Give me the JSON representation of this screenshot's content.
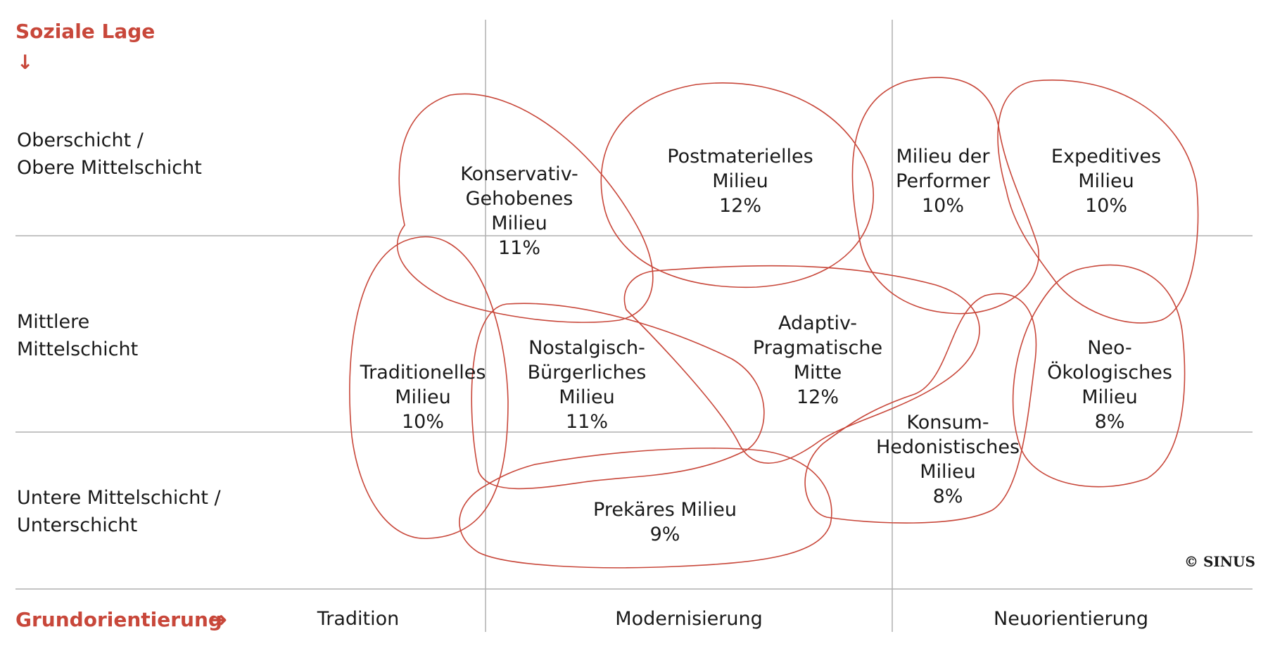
{
  "y_axis": {
    "title": "Soziale Lage",
    "arrow": "↓"
  },
  "x_axis": {
    "title": "Grundorientierung",
    "arrow": "➜"
  },
  "rows": [
    {
      "line1": "Oberschicht /",
      "line2": "Obere Mittelschicht"
    },
    {
      "line1": "Mittlere",
      "line2": "Mittelschicht"
    },
    {
      "line1": "Untere Mittelschicht /",
      "line2": "Unterschicht"
    }
  ],
  "columns": [
    "Tradition",
    "Modernisierung",
    "Neuorientierung"
  ],
  "milieus": [
    {
      "lines": [
        "Konservativ-",
        "Gehobenes",
        "Milieu"
      ],
      "share": "11%"
    },
    {
      "lines": [
        "Postmaterielles",
        "Milieu"
      ],
      "share": "12%"
    },
    {
      "lines": [
        "Milieu der",
        "Performer"
      ],
      "share": "10%"
    },
    {
      "lines": [
        "Expeditives",
        "Milieu"
      ],
      "share": "10%"
    },
    {
      "lines": [
        "Traditionelles",
        "Milieu"
      ],
      "share": "10%"
    },
    {
      "lines": [
        "Nostalgisch-",
        "Bürgerliches",
        "Milieu"
      ],
      "share": "11%"
    },
    {
      "lines": [
        "Adaptiv-",
        "Pragmatische",
        "Mitte"
      ],
      "share": "12%"
    },
    {
      "lines": [
        "Neo-",
        "Ökologisches",
        "Milieu"
      ],
      "share": "8%"
    },
    {
      "lines": [
        "Konsum-",
        "Hedonistisches",
        "Milieu"
      ],
      "share": "8%"
    },
    {
      "lines": [
        "Prekäres Milieu"
      ],
      "share": "9%"
    }
  ],
  "copyright": "© SINUS",
  "colors": {
    "accent": "#c8473a",
    "grid": "#b0b0b0"
  }
}
